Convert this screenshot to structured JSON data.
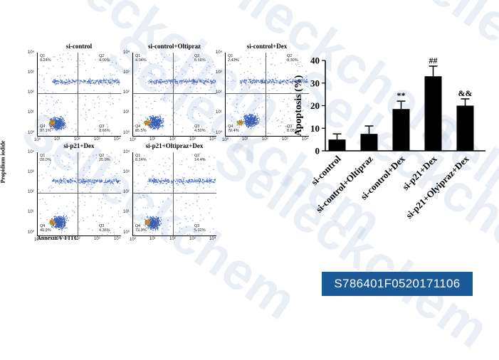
{
  "watermark": {
    "text": "Selleckchem"
  },
  "flow_figure": {
    "y_axis_label": "Propidium iodide",
    "x_axis_label": "Annexin V-FITC",
    "y_ticks": [
      "10⁴",
      "10³",
      "10²",
      "10¹",
      "10⁰"
    ],
    "x_ticks": [
      "10⁰",
      "10¹",
      "10²",
      "10³",
      "10⁴"
    ],
    "panels": [
      {
        "title": "si-control",
        "quadrants": {
          "q1": {
            "name": "Q1",
            "value": "0.24%"
          },
          "q2": {
            "name": "Q2",
            "value": "4.00%"
          },
          "q3": {
            "name": "Q3",
            "value": "2.66%"
          },
          "q4": {
            "name": "Q4",
            "value": "97.1%"
          }
        },
        "color": "#7a9cd1"
      },
      {
        "title": "si-control+Oltipraz",
        "quadrants": {
          "q1": {
            "name": "Q1",
            "value": "4.04%"
          },
          "q2": {
            "name": "Q2",
            "value": "5.18%"
          },
          "q3": {
            "name": "Q3",
            "value": "4.50%"
          },
          "q4": {
            "name": "Q4",
            "value": "85.5%"
          }
        },
        "color": "#7a9cd1"
      },
      {
        "title": "si-control+Dex",
        "quadrants": {
          "q1": {
            "name": "Q1",
            "value": "2.43%"
          },
          "q2": {
            "name": "Q2",
            "value": "9.30%"
          },
          "q3": {
            "name": "Q3",
            "value": "8.05%"
          },
          "q4": {
            "name": "Q4",
            "value": "79.4%"
          }
        },
        "color": "#7a9cd1"
      },
      {
        "title": "si-p21+Dex",
        "quadrants": {
          "q1": {
            "name": "Q1",
            "value": "20.0%"
          },
          "q2": {
            "name": "Q2",
            "value": "25.0%"
          },
          "q3": {
            "name": "Q3",
            "value": "4.36%"
          },
          "q4": {
            "name": "Q4",
            "value": "40.9%"
          }
        },
        "color": "#7a9cd1"
      },
      {
        "title": "si-p21+Oltipraz+Dex",
        "quadrants": {
          "q1": {
            "name": "Q1",
            "value": "8.24%"
          },
          "q2": {
            "name": "Q2",
            "value": "14.4%"
          },
          "q3": {
            "name": "Q3",
            "value": "5.02%"
          },
          "q4": {
            "name": "Q4",
            "value": "72.3%"
          }
        },
        "color": "#7a9cd1"
      }
    ]
  },
  "chart_data": {
    "type": "bar",
    "ylabel": "Apoptosis (%)",
    "ylim": [
      0,
      40
    ],
    "yticks": [
      0,
      10,
      20,
      30,
      40
    ],
    "categories": [
      "si-control",
      "si-control+Oltipraz",
      "si-control+Dex",
      "si-p21+Dex",
      "si-p21+Olyipraz+Dex"
    ],
    "values": [
      5,
      7.5,
      18.5,
      33,
      20
    ],
    "errors": [
      2.5,
      3.5,
      3.5,
      4.5,
      3
    ],
    "annotations": [
      "",
      "",
      "**",
      "##",
      "&&"
    ],
    "bar_color": "#000000"
  },
  "figure_id": "S786401F0520171106"
}
